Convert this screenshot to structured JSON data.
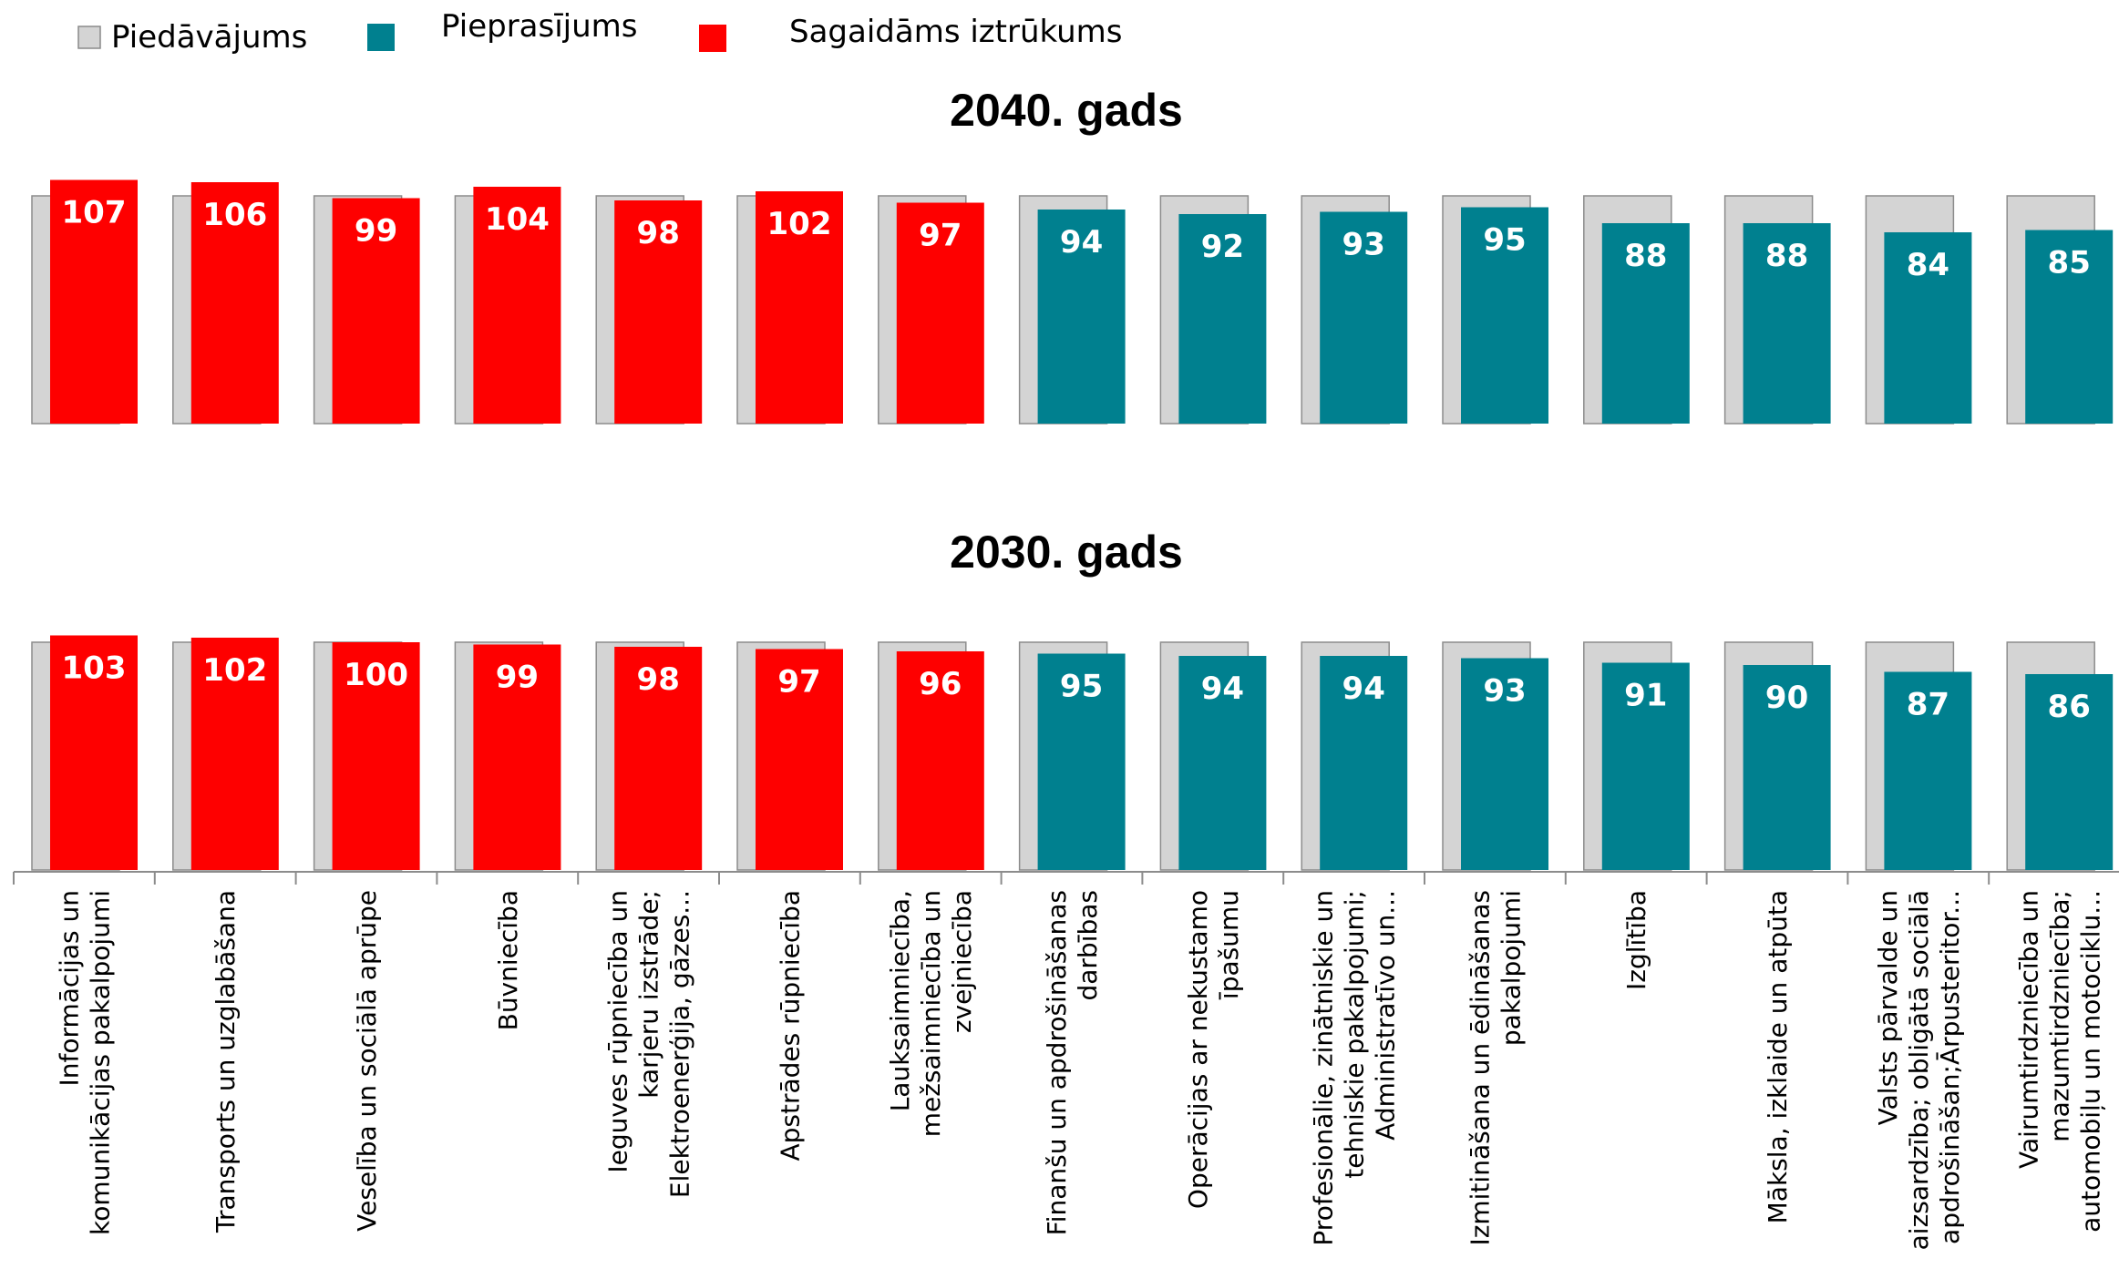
{
  "legend": {
    "supply_label": "Piedāvājums",
    "demand_label": "Pieprasījums",
    "shortage_label": "Sagaidāms iztrūkums"
  },
  "colors": {
    "supply": "#d4d4d4",
    "demand": "#00808f",
    "shortage": "#fe0000"
  },
  "chart_data": [
    {
      "type": "bar",
      "title": "2040. gads",
      "categories": [
        "Informācijas un komunikācijas pakalpojumi",
        "Transports un uzglabāšana",
        "Veselība un sociālā aprūpe",
        "Būvniecība",
        "Ieguves rūpniecība un karjeru izstrāde; Elektroenerģija, gāzes...",
        "Apstrādes rūpniecība",
        "Lauksaimniecība, mežsaimniecība un zvejniecība",
        "Finanšu un apdrošināšanas darbības",
        "Operācijas ar nekustamo īpašumu",
        "Profesionālie, zinātniskie un tehniskie pakalpojumi; Administratīvo un...",
        "Izmitināšana un ēdināšanas pakalpojumi",
        "Izglītība",
        "Māksla, izklaide un atpūta",
        "Valsts pārvalde un aizsardzība; obligātā sociālā apdrošināšan;Ārpusteritor...",
        "Vairumtirdzniecība un mazumtirdzniecība; automobiļu un motociklu..."
      ],
      "series": [
        {
          "name": "Piedāvājums",
          "values": [
            100,
            100,
            100,
            100,
            100,
            100,
            100,
            100,
            100,
            100,
            100,
            100,
            100,
            100,
            100
          ]
        },
        {
          "name": "Pieprasījums",
          "values": [
            107,
            106,
            99,
            104,
            98,
            102,
            97,
            94,
            92,
            93,
            95,
            88,
            88,
            84,
            85
          ]
        }
      ],
      "shortage": [
        true,
        true,
        true,
        true,
        true,
        true,
        true,
        false,
        false,
        false,
        false,
        false,
        false,
        false,
        false
      ],
      "ylim": [
        0,
        115
      ]
    },
    {
      "type": "bar",
      "title": "2030. gads",
      "categories": [
        "Informācijas un komunikācijas pakalpojumi",
        "Transports un uzglabāšana",
        "Veselība un sociālā aprūpe",
        "Būvniecība",
        "Ieguves rūpniecība un karjeru izstrāde; Elektroenerģija, gāzes...",
        "Apstrādes rūpniecība",
        "Lauksaimniecība, mežsaimniecība un zvejniecība",
        "Finanšu un apdrošināšanas darbības",
        "Operācijas ar nekustamo īpašumu",
        "Profesionālie, zinātniskie un tehniskie pakalpojumi; Administratīvo un...",
        "Izmitināšana un ēdināšanas pakalpojumi",
        "Izglītība",
        "Māksla, izklaide un atpūta",
        "Valsts pārvalde un aizsardzība; obligātā sociālā apdrošināšan;Ārpusteritor...",
        "Vairumtirdzniecība un mazumtirdzniecība; automobiļu un motociklu..."
      ],
      "series": [
        {
          "name": "Piedāvājums",
          "values": [
            100,
            100,
            100,
            100,
            100,
            100,
            100,
            100,
            100,
            100,
            100,
            100,
            100,
            100,
            100
          ]
        },
        {
          "name": "Pieprasījums",
          "values": [
            103,
            102,
            100,
            99,
            98,
            97,
            96,
            95,
            94,
            94,
            93,
            91,
            90,
            87,
            86
          ]
        }
      ],
      "shortage": [
        true,
        true,
        true,
        true,
        true,
        true,
        true,
        false,
        false,
        false,
        false,
        false,
        false,
        false,
        false
      ],
      "ylim": [
        0,
        115
      ]
    }
  ],
  "category_label_lines": [
    [
      "Informācijas un",
      "komunikācijas pakalpojumi"
    ],
    [
      "Transports un uzglabāšana"
    ],
    [
      "Veselība un sociālā aprūpe"
    ],
    [
      "Būvniecība"
    ],
    [
      "Ieguves rūpniecība un",
      "karjeru izstrāde;",
      "Elektroenerģija, gāzes..."
    ],
    [
      "Apstrādes rūpniecība"
    ],
    [
      "Lauksaimniecība,",
      "mežsaimniecība un",
      "zvejniecība"
    ],
    [
      "Finanšu un apdrošināšanas",
      "darbības"
    ],
    [
      "Operācijas ar nekustamo",
      "īpašumu"
    ],
    [
      "Profesionālie, zinātniskie un",
      "tehniskie pakalpojumi;",
      "Administratīvo un..."
    ],
    [
      "Izmitināšana un ēdināšanas",
      "pakalpojumi"
    ],
    [
      "Izglītība"
    ],
    [
      "Māksla, izklaide un atpūta"
    ],
    [
      "Valsts pārvalde un",
      "aizsardzība; obligātā sociālā",
      "apdrošināšan;Ārpusteritor..."
    ],
    [
      "Vairumtirdzniecība un",
      "mazumtirdzniecība;",
      "automobiļu un motociklu..."
    ]
  ]
}
